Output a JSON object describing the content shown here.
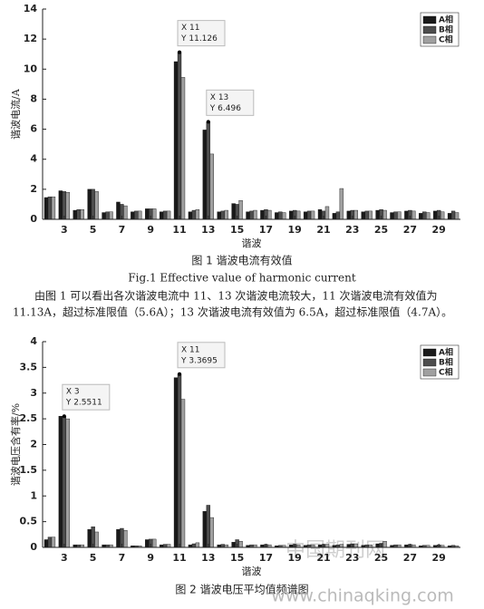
{
  "chart_data": [
    {
      "type": "bar",
      "xlabel": "谐波",
      "ylabel": "谐波电流/A",
      "x": [
        2,
        3,
        4,
        5,
        6,
        7,
        8,
        9,
        10,
        11,
        12,
        13,
        14,
        15,
        16,
        17,
        18,
        19,
        20,
        21,
        22,
        23,
        24,
        25,
        26,
        27,
        28,
        29,
        30
      ],
      "xlim": [
        1.5,
        30.5
      ],
      "xticks": [
        3,
        5,
        7,
        9,
        11,
        13,
        15,
        17,
        19,
        21,
        23,
        25,
        27,
        29
      ],
      "ylim": [
        0,
        14
      ],
      "yticks": [
        0,
        2,
        4,
        6,
        8,
        10,
        12,
        14
      ],
      "series": [
        {
          "name": "A相",
          "color": "#1a1a1a",
          "values": [
            1.45,
            1.9,
            0.6,
            2.0,
            0.45,
            1.15,
            0.5,
            0.7,
            0.5,
            10.5,
            0.5,
            5.95,
            0.5,
            1.05,
            0.5,
            0.6,
            0.45,
            0.55,
            0.5,
            0.65,
            0.4,
            0.55,
            0.5,
            0.6,
            0.45,
            0.55,
            0.4,
            0.55,
            0.4
          ]
        },
        {
          "name": "B相",
          "color": "#4d4d4d",
          "values": [
            1.5,
            1.85,
            0.65,
            2.0,
            0.5,
            1.0,
            0.55,
            0.7,
            0.55,
            11.126,
            0.6,
            6.496,
            0.55,
            1.0,
            0.55,
            0.65,
            0.5,
            0.6,
            0.55,
            0.55,
            0.5,
            0.6,
            0.55,
            0.65,
            0.5,
            0.6,
            0.5,
            0.6,
            0.55
          ]
        },
        {
          "name": "C相",
          "color": "#a0a0a0",
          "values": [
            1.5,
            1.8,
            0.65,
            1.85,
            0.5,
            0.9,
            0.55,
            0.7,
            0.55,
            9.45,
            0.65,
            4.35,
            0.6,
            1.25,
            0.6,
            0.6,
            0.45,
            0.55,
            0.55,
            0.85,
            2.05,
            0.6,
            0.55,
            0.6,
            0.5,
            0.55,
            0.45,
            0.5,
            0.45
          ]
        }
      ],
      "annotations": [
        {
          "x": 11,
          "y": 11.126,
          "label_x": "X 11",
          "label_y": "Y 11.126"
        },
        {
          "x": 13,
          "y": 6.496,
          "label_x": "X 13",
          "label_y": "Y 6.496"
        }
      ]
    },
    {
      "type": "bar",
      "xlabel": "谐波",
      "ylabel": "谐波电压含有率/%",
      "x": [
        2,
        3,
        4,
        5,
        6,
        7,
        8,
        9,
        10,
        11,
        12,
        13,
        14,
        15,
        16,
        17,
        18,
        19,
        20,
        21,
        22,
        23,
        24,
        25,
        26,
        27,
        28,
        29,
        30
      ],
      "xlim": [
        1.5,
        30.5
      ],
      "xticks": [
        3,
        5,
        7,
        9,
        11,
        13,
        15,
        17,
        19,
        21,
        23,
        25,
        27,
        29
      ],
      "ylim": [
        0,
        4
      ],
      "yticks": [
        0,
        0.5,
        1,
        1.5,
        2,
        2.5,
        3,
        3.5,
        4
      ],
      "series": [
        {
          "name": "A相",
          "color": "#1a1a1a",
          "values": [
            0.15,
            2.55,
            0.05,
            0.35,
            0.05,
            0.35,
            0.03,
            0.15,
            0.05,
            3.3,
            0.05,
            0.7,
            0.05,
            0.1,
            0.04,
            0.05,
            0.03,
            0.05,
            0.04,
            0.05,
            0.04,
            0.06,
            0.04,
            0.07,
            0.04,
            0.05,
            0.03,
            0.04,
            0.03
          ]
        },
        {
          "name": "B相",
          "color": "#4d4d4d",
          "values": [
            0.2,
            2.5511,
            0.05,
            0.4,
            0.05,
            0.37,
            0.03,
            0.16,
            0.06,
            3.3695,
            0.07,
            0.82,
            0.06,
            0.15,
            0.05,
            0.06,
            0.04,
            0.06,
            0.05,
            0.06,
            0.05,
            0.07,
            0.05,
            0.08,
            0.05,
            0.06,
            0.04,
            0.05,
            0.04
          ]
        },
        {
          "name": "C相",
          "color": "#a0a0a0",
          "values": [
            0.2,
            2.5,
            0.05,
            0.3,
            0.05,
            0.33,
            0.03,
            0.16,
            0.06,
            2.88,
            0.09,
            0.58,
            0.05,
            0.12,
            0.05,
            0.05,
            0.04,
            0.05,
            0.05,
            0.06,
            0.06,
            0.07,
            0.05,
            0.12,
            0.05,
            0.05,
            0.04,
            0.04,
            0.03
          ]
        }
      ],
      "annotations": [
        {
          "x": 3,
          "y": 2.5511,
          "label_x": "X 3",
          "label_y": "Y 2.5511"
        },
        {
          "x": 11,
          "y": 3.3695,
          "label_x": "X 11",
          "label_y": "Y 3.3695"
        }
      ]
    }
  ],
  "document": {
    "fig1_caption": "图 1  谐波电流有效值",
    "fig1_caption_en": "Fig.1  Effective value of harmonic current",
    "paragraph": [
      "由图 1 可以看出各次谐波电流中 11、13 次谐波电流较大，11 次谐波电流有效值为",
      "11.13A，超过标准限值（5.6A）；13 次谐波电流有效值为 6.5A，超过标准限值（4.7A）。"
    ],
    "fig2_caption": "图 2  谐波电压平均值频谱图",
    "watermark": [
      "中国期刊网",
      "www.chinaqking.com"
    ]
  }
}
